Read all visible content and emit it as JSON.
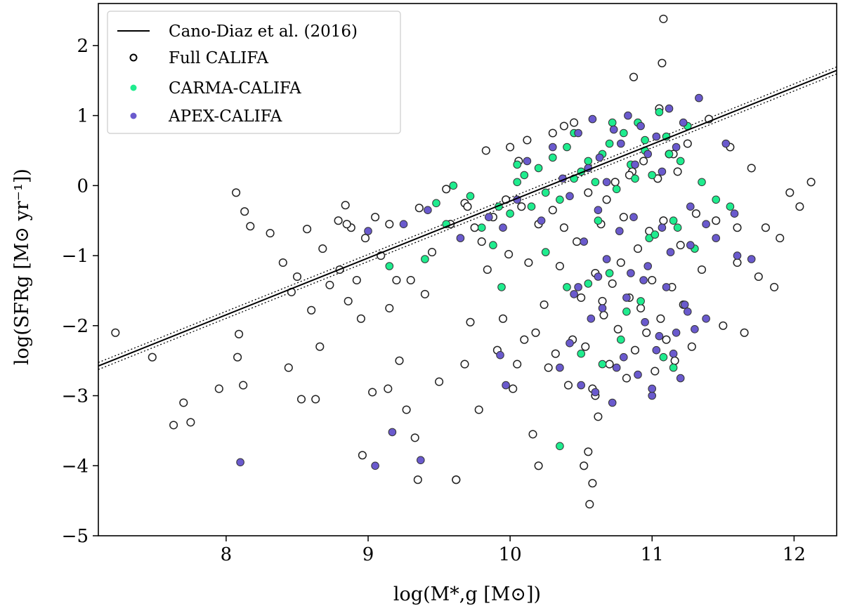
{
  "chart_data": {
    "type": "scatter",
    "title": "",
    "xlabel": "log(M*,g [M⊙])",
    "ylabel": "log(SFRg [M⊙ yr⁻¹])",
    "xlim": [
      7.1,
      12.3
    ],
    "ylim": [
      -5,
      2.6
    ],
    "xticks": [
      8,
      9,
      10,
      11,
      12
    ],
    "yticks": [
      -5,
      -4,
      -3,
      -2,
      -1,
      0,
      1,
      2
    ],
    "xtick_labels": [
      "8",
      "9",
      "10",
      "11",
      "12"
    ],
    "ytick_labels": [
      "−5",
      "−4",
      "−3",
      "−2",
      "−1",
      "0",
      "1",
      "2"
    ],
    "legend_position": "top-left",
    "legend": [
      {
        "label": "Cano-Diaz et al. (2016)",
        "kind": "line",
        "color": "#000000"
      },
      {
        "label": "Full CALIFA",
        "kind": "open-circle",
        "color": "#000000"
      },
      {
        "label": "CARMA-CALIFA",
        "kind": "filled-circle",
        "color": "#1fec8e"
      },
      {
        "label": "APEX-CALIFA",
        "kind": "filled-circle",
        "color": "#6a5acd"
      }
    ],
    "fit_line": {
      "name": "Cano-Diaz et al. (2016)",
      "x": [
        7.1,
        12.3
      ],
      "y": [
        -2.576,
        1.645
      ],
      "band_offset": 0.05
    },
    "series": [
      {
        "name": "Full CALIFA",
        "marker": "open-circle",
        "x": [
          7.22,
          7.48,
          7.63,
          7.7,
          7.75,
          7.95,
          8.07,
          8.08,
          8.09,
          8.12,
          8.13,
          8.17,
          8.31,
          8.4,
          8.44,
          8.46,
          8.5,
          8.53,
          8.57,
          8.6,
          8.63,
          8.66,
          8.68,
          8.73,
          8.79,
          8.8,
          8.84,
          8.86,
          8.88,
          8.92,
          8.95,
          8.96,
          8.98,
          9.03,
          9.05,
          9.09,
          9.14,
          9.15,
          9.2,
          9.22,
          9.27,
          9.3,
          9.33,
          9.36,
          9.4,
          9.45,
          9.5,
          9.55,
          9.58,
          9.62,
          9.68,
          9.72,
          9.75,
          9.78,
          9.8,
          9.84,
          9.88,
          9.91,
          9.95,
          9.97,
          9.99,
          10.02,
          10.05,
          10.08,
          10.1,
          10.13,
          10.16,
          10.18,
          10.2,
          10.24,
          10.27,
          10.3,
          10.32,
          10.35,
          10.38,
          10.41,
          10.44,
          10.47,
          10.5,
          10.53,
          10.55,
          10.58,
          10.6,
          10.62,
          10.64,
          10.66,
          10.68,
          10.7,
          10.72,
          10.74,
          10.76,
          10.78,
          10.8,
          10.82,
          10.84,
          10.86,
          10.88,
          10.9,
          10.92,
          10.94,
          10.96,
          10.98,
          11.0,
          11.02,
          11.04,
          11.06,
          11.08,
          11.1,
          11.12,
          11.14,
          11.16,
          11.18,
          11.2,
          11.22,
          11.25,
          11.28,
          11.31,
          11.35,
          11.4,
          11.45,
          11.5,
          11.55,
          11.6,
          11.65,
          11.7,
          11.75,
          11.8,
          11.86,
          11.9,
          11.97,
          12.04,
          12.12,
          10.58,
          10.56,
          10.6,
          10.55,
          10.65,
          10.52,
          11.08,
          11.07,
          10.87,
          9.35,
          9.62,
          10.2,
          8.85,
          9.15,
          10.0,
          10.45,
          9.68,
          9.83,
          10.12,
          9.7,
          10.3,
          10.84,
          11.15,
          11.6,
          10.06,
          10.38,
          11.05
        ],
        "y": [
          -2.1,
          -2.45,
          -3.42,
          -3.1,
          -3.38,
          -2.9,
          -0.1,
          -2.45,
          -2.12,
          -2.85,
          -0.37,
          -0.58,
          -0.68,
          -1.1,
          -2.6,
          -1.52,
          -1.3,
          -3.05,
          -0.62,
          -1.78,
          -3.05,
          -2.3,
          -0.9,
          -1.42,
          -0.5,
          -1.2,
          -0.28,
          -1.65,
          -0.6,
          -1.35,
          -1.9,
          -3.85,
          -0.75,
          -2.95,
          -0.45,
          -1.0,
          -2.9,
          -0.55,
          -1.35,
          -2.5,
          -3.2,
          -1.35,
          -3.6,
          -0.32,
          -1.55,
          -0.95,
          -2.8,
          -0.05,
          -0.55,
          -4.2,
          -0.25,
          -1.95,
          -0.6,
          -3.2,
          -0.8,
          -1.2,
          -0.45,
          -2.35,
          -1.9,
          -0.2,
          -0.98,
          -2.9,
          -2.55,
          -0.3,
          -2.2,
          -1.1,
          -3.55,
          -2.1,
          -0.55,
          -1.7,
          -2.6,
          -0.35,
          -2.4,
          -1.15,
          -0.6,
          -2.85,
          -2.2,
          -0.8,
          -1.6,
          -2.3,
          -0.1,
          -2.9,
          -1.25,
          -3.3,
          -0.55,
          -1.85,
          -0.2,
          -2.55,
          -1.4,
          0.05,
          -2.05,
          -1.1,
          -0.45,
          -2.75,
          -1.6,
          0.2,
          -2.35,
          -0.9,
          -1.75,
          0.35,
          -2.1,
          -0.65,
          -1.35,
          -2.65,
          0.1,
          -1.9,
          -0.5,
          -2.2,
          0.45,
          -1.45,
          -2.5,
          0.2,
          -0.85,
          -1.7,
          0.6,
          -2.3,
          -0.4,
          -1.2,
          0.95,
          -0.5,
          -2.0,
          0.55,
          -1.1,
          -2.1,
          0.25,
          -1.3,
          -0.6,
          -1.45,
          -0.75,
          -0.1,
          -0.3,
          0.05,
          -4.25,
          -4.55,
          -3.0,
          -3.8,
          -1.65,
          -4.0,
          2.38,
          1.75,
          1.55,
          -4.2,
          -4.2,
          -4.0,
          -0.55,
          -1.75,
          0.55,
          0.9,
          -2.55,
          0.5,
          0.65,
          -0.3,
          0.75,
          0.15,
          0.45,
          -0.6,
          0.35,
          0.85,
          1.1
        ]
      },
      {
        "name": "CARMA-CALIFA",
        "marker": "filled-circle",
        "x": [
          9.15,
          9.4,
          9.48,
          9.6,
          9.72,
          9.8,
          9.88,
          9.94,
          10.0,
          10.05,
          10.1,
          10.15,
          10.2,
          10.25,
          10.3,
          10.35,
          10.4,
          10.45,
          10.5,
          10.55,
          10.6,
          10.65,
          10.7,
          10.75,
          10.8,
          10.85,
          10.9,
          10.95,
          11.0,
          11.05,
          11.1,
          11.15,
          11.2,
          11.25,
          11.3,
          11.35,
          11.45,
          11.55,
          10.35,
          10.5,
          10.65,
          10.7,
          10.82,
          10.98,
          11.08,
          11.15,
          10.4,
          10.55,
          10.78,
          10.92,
          11.02,
          9.92,
          10.25,
          10.62,
          10.88,
          11.18,
          10.45,
          10.72,
          10.95,
          11.12,
          9.55,
          10.05
        ],
        "y": [
          -1.15,
          -1.05,
          -0.25,
          0.0,
          -0.15,
          -0.6,
          -0.85,
          -1.45,
          -0.4,
          0.05,
          0.15,
          -0.3,
          0.25,
          -0.1,
          0.4,
          -0.2,
          0.55,
          0.1,
          0.2,
          0.35,
          0.05,
          0.45,
          0.6,
          -0.05,
          0.75,
          0.3,
          0.9,
          0.5,
          0.15,
          1.05,
          0.7,
          -0.5,
          0.35,
          0.85,
          -0.9,
          0.05,
          -0.2,
          -0.3,
          -3.72,
          -2.4,
          -2.55,
          -1.25,
          -1.8,
          -0.75,
          -2.45,
          -2.6,
          -1.45,
          -1.4,
          -2.2,
          -1.65,
          -0.7,
          -0.3,
          -0.95,
          -0.5,
          0.1,
          -0.6,
          0.75,
          0.9,
          0.65,
          0.45,
          -0.55,
          0.3
        ]
      },
      {
        "name": "APEX-CALIFA",
        "marker": "filled-circle",
        "x": [
          8.1,
          9.05,
          9.17,
          9.37,
          9.93,
          9.97,
          9.0,
          9.25,
          9.42,
          9.65,
          9.85,
          9.95,
          10.05,
          10.12,
          10.22,
          10.3,
          10.37,
          10.42,
          10.48,
          10.55,
          10.58,
          10.63,
          10.68,
          10.73,
          10.78,
          10.83,
          10.88,
          10.92,
          10.97,
          11.03,
          11.07,
          11.12,
          11.17,
          11.22,
          11.27,
          11.33,
          11.38,
          11.45,
          11.52,
          11.6,
          11.7,
          10.35,
          10.45,
          10.5,
          10.6,
          10.65,
          10.72,
          10.8,
          10.85,
          10.9,
          10.95,
          11.0,
          11.05,
          11.1,
          11.15,
          11.2,
          11.25,
          11.3,
          10.52,
          10.68,
          10.82,
          10.94,
          11.03,
          11.13,
          11.23,
          10.57,
          10.77,
          10.97,
          11.17,
          10.42,
          10.62,
          10.87,
          11.07,
          11.27,
          10.75,
          11.0,
          10.62,
          10.48,
          11.38,
          11.58
        ],
        "y": [
          -3.95,
          -4.0,
          -3.52,
          -3.92,
          -2.42,
          -2.85,
          -0.65,
          -0.55,
          -0.35,
          -0.75,
          -0.45,
          -0.6,
          -0.2,
          0.35,
          -0.5,
          0.55,
          0.1,
          -0.15,
          0.75,
          0.25,
          0.95,
          0.4,
          0.05,
          0.8,
          0.6,
          1.0,
          0.3,
          0.85,
          0.45,
          0.7,
          0.2,
          1.1,
          0.55,
          0.9,
          -0.3,
          1.25,
          -0.55,
          -0.75,
          0.6,
          -1.0,
          -1.05,
          -2.6,
          -1.55,
          -2.85,
          -2.95,
          -1.75,
          -3.1,
          -2.45,
          -1.25,
          -2.7,
          -1.95,
          -3.0,
          -2.15,
          -1.45,
          -2.4,
          -2.75,
          -1.8,
          -2.05,
          -0.8,
          -1.05,
          -1.6,
          -1.35,
          -2.35,
          -0.95,
          -1.7,
          -1.9,
          -0.65,
          -1.15,
          -2.1,
          -2.25,
          -1.3,
          -0.45,
          -0.6,
          -0.85,
          -2.6,
          -2.9,
          -0.35,
          -1.45,
          -1.9,
          -0.4
        ]
      }
    ]
  },
  "colors": {
    "carma": "#1fec8e",
    "apex": "#6a5acd",
    "open_edge": "#222222",
    "line": "#000000"
  }
}
